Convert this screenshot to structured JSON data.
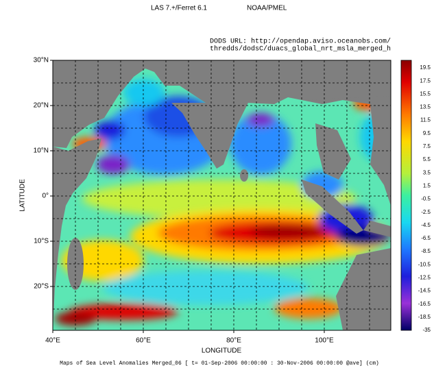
{
  "chart_data": {
    "type": "map",
    "header_left": "LAS 7.+/Ferret 6.1",
    "header_right": "NOAA/PMEL",
    "url_line1": "DODS URL: http://opendap.aviso.oceanobs.com/",
    "url_line2": "thredds/dodsC/duacs_global_nrt_msla_merged_h",
    "xlabel": "LONGITUDE",
    "ylabel": "LATITUDE",
    "caption": "Maps of Sea Level Anomalies Merged_06 [ t= 01-Sep-2006 00:00:00 : 30-Nov-2006 00:00:00 @ave] (cm)",
    "xlim": [
      40,
      114.7
    ],
    "ylim": [
      -29.7,
      30
    ],
    "xticks": [
      {
        "value": 40,
        "label": "40°E"
      },
      {
        "value": 60,
        "label": "60°E"
      },
      {
        "value": 80,
        "label": "80°E"
      },
      {
        "value": 100,
        "label": "100°E"
      }
    ],
    "yticks": [
      {
        "value": 30,
        "label": "30°N"
      },
      {
        "value": 20,
        "label": "20°N"
      },
      {
        "value": 10,
        "label": "10°N"
      },
      {
        "value": 0,
        "label": "0°"
      },
      {
        "value": -10,
        "label": "10°S"
      },
      {
        "value": -20,
        "label": "20°S"
      }
    ],
    "xgrid": [
      45,
      50,
      55,
      60,
      65,
      70,
      75,
      80,
      85,
      90,
      95,
      100,
      105,
      110
    ],
    "ygrid": [
      25,
      20,
      15,
      10,
      5,
      0,
      -5,
      -10,
      -15,
      -20,
      -25
    ],
    "colorbar_labels": [
      "19.5",
      "17.5",
      "15.5",
      "13.5",
      "11.5",
      "9.5",
      "7.5",
      "5.5",
      "3.5",
      "1.5",
      "-0.5",
      "-2.5",
      "-4.5",
      "-6.5",
      "-8.5",
      "-10.5",
      "-12.5",
      "-14.5",
      "-16.5",
      "-18.5",
      "-35"
    ],
    "land_color": "#7f7f7f"
  }
}
